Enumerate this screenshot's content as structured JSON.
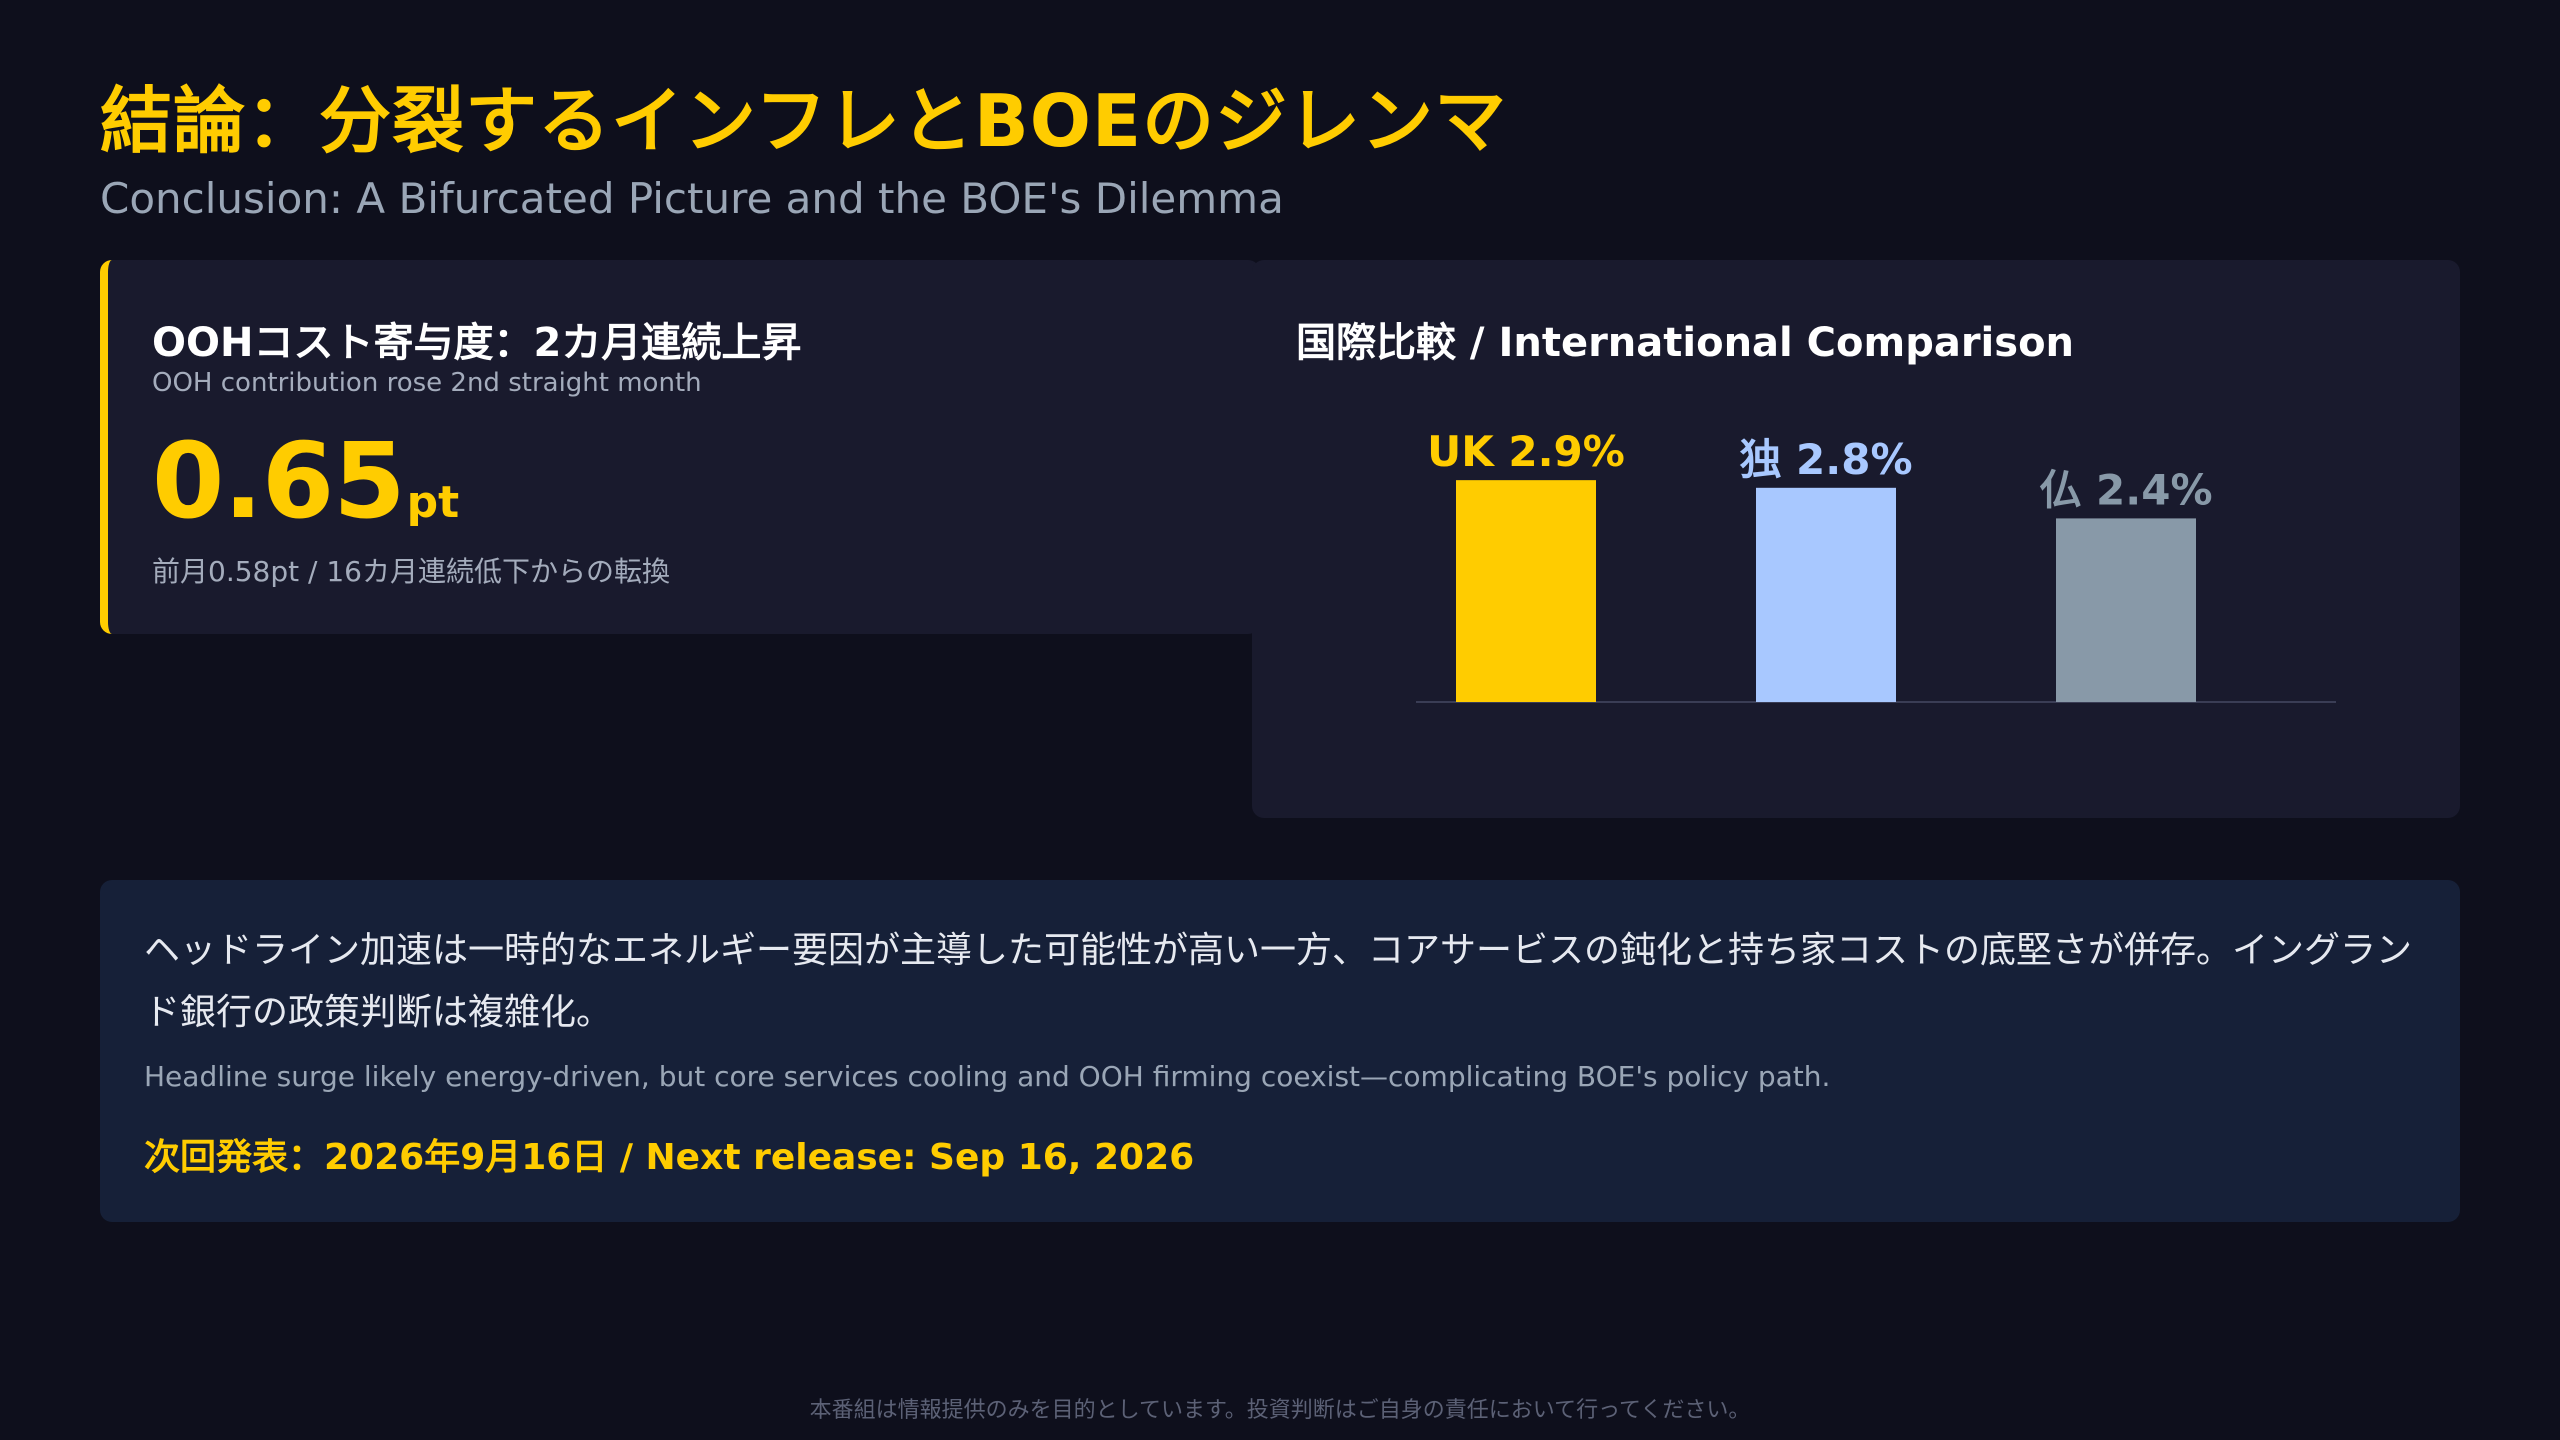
{
  "header": {
    "title": "結論：分裂するインフレとBOEのジレンマ",
    "subtitle": "Conclusion: A Bifurcated Picture and the BOE's Dilemma"
  },
  "metric": {
    "title": "OOHコスト寄与度：2カ月連続上昇",
    "subtitle": "OOH contribution rose 2nd straight month",
    "value": "0.65",
    "unit": "pt",
    "note": "前月0.58pt / 16カ月連続低下からの転換"
  },
  "comparison": {
    "title": "国際比較 / International Comparison"
  },
  "chart_data": {
    "type": "bar",
    "title": "国際比較 / International Comparison",
    "categories": [
      "UK",
      "独",
      "仏"
    ],
    "values": [
      2.9,
      2.8,
      2.4
    ],
    "labels": [
      "UK 2.9%",
      "独 2.8%",
      "仏 2.4%"
    ],
    "colors": [
      "#ffcc00",
      "#a8c8ff",
      "#8899a8"
    ],
    "xlabel": "",
    "ylabel": "",
    "grid": false,
    "legend": "none"
  },
  "summary": {
    "text_jp": "ヘッドライン加速は一時的なエネルギー要因が主導した可能性が高い一方、コアサービスの鈍化と持ち家コストの底堅さが併存。イングランド銀行の政策判断は複雑化。",
    "text_en": "Headline surge likely energy-driven, but core services cooling and OOH firming coexist—complicating BOE's policy path.",
    "next_release": "次回発表：2026年9月16日 / Next release: Sep 16, 2026"
  },
  "footer": {
    "disclaimer": "本番組は情報提供のみを目的としています。投資判断はご自身の責任において行ってください。"
  }
}
